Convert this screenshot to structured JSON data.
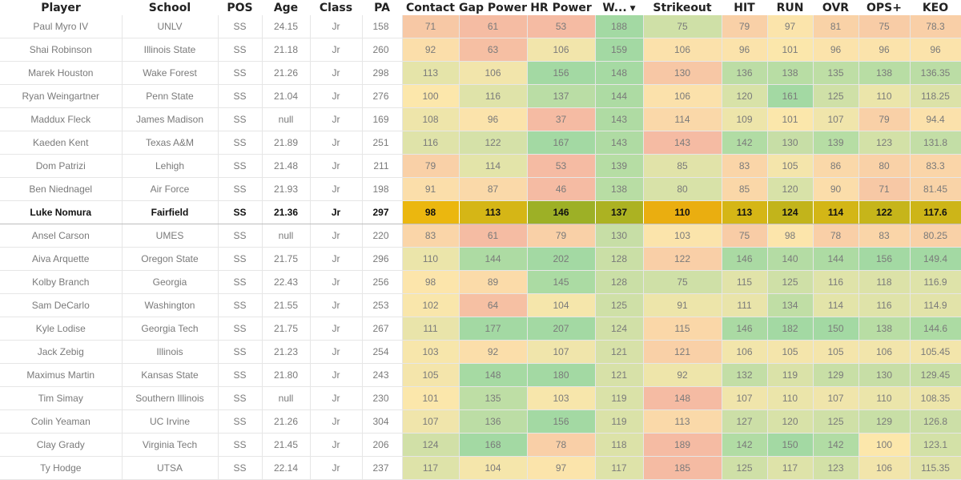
{
  "columns": [
    {
      "key": "player",
      "label": "Player"
    },
    {
      "key": "school",
      "label": "School"
    },
    {
      "key": "pos",
      "label": "POS"
    },
    {
      "key": "age",
      "label": "Age"
    },
    {
      "key": "class",
      "label": "Class"
    },
    {
      "key": "pa",
      "label": "PA"
    },
    {
      "key": "contact",
      "label": "Contact"
    },
    {
      "key": "gap",
      "label": "Gap Power"
    },
    {
      "key": "hr",
      "label": "HR Power"
    },
    {
      "key": "walk",
      "label": "W...",
      "sorted": "desc",
      "sort_icon": "sort-desc-icon"
    },
    {
      "key": "k",
      "label": "Strikeout"
    },
    {
      "key": "hit",
      "label": "HIT"
    },
    {
      "key": "run",
      "label": "RUN"
    },
    {
      "key": "ovr",
      "label": "OVR"
    },
    {
      "key": "ops",
      "label": "OPS+"
    },
    {
      "key": "keo",
      "label": "KEO"
    }
  ],
  "highlight_row": 8,
  "rows": [
    {
      "player": "Paul Myro IV",
      "school": "UNLV",
      "pos": "SS",
      "age": "24.15",
      "class": "Jr",
      "pa": "158",
      "contact": "71",
      "gap": "61",
      "hr": "53",
      "walk": "188",
      "k": "75",
      "hit": "79",
      "run": "97",
      "ovr": "81",
      "ops": "75",
      "keo": "78.3"
    },
    {
      "player": "Shai Robinson",
      "school": "Illinois State",
      "pos": "SS",
      "age": "21.18",
      "class": "Jr",
      "pa": "260",
      "contact": "92",
      "gap": "63",
      "hr": "106",
      "walk": "159",
      "k": "106",
      "hit": "96",
      "run": "101",
      "ovr": "96",
      "ops": "96",
      "keo": "96"
    },
    {
      "player": "Marek Houston",
      "school": "Wake Forest",
      "pos": "SS",
      "age": "21.26",
      "class": "Jr",
      "pa": "298",
      "contact": "113",
      "gap": "106",
      "hr": "156",
      "walk": "148",
      "k": "130",
      "hit": "136",
      "run": "138",
      "ovr": "135",
      "ops": "138",
      "keo": "136.35"
    },
    {
      "player": "Ryan Weingartner",
      "school": "Penn State",
      "pos": "SS",
      "age": "21.04",
      "class": "Jr",
      "pa": "276",
      "contact": "100",
      "gap": "116",
      "hr": "137",
      "walk": "144",
      "k": "106",
      "hit": "120",
      "run": "161",
      "ovr": "125",
      "ops": "110",
      "keo": "118.25"
    },
    {
      "player": "Maddux Fleck",
      "school": "James Madison",
      "pos": "SS",
      "age": "null",
      "class": "Jr",
      "pa": "169",
      "contact": "108",
      "gap": "96",
      "hr": "37",
      "walk": "143",
      "k": "114",
      "hit": "109",
      "run": "101",
      "ovr": "107",
      "ops": "79",
      "keo": "94.4"
    },
    {
      "player": "Kaeden Kent",
      "school": "Texas A&M",
      "pos": "SS",
      "age": "21.89",
      "class": "Jr",
      "pa": "251",
      "contact": "116",
      "gap": "122",
      "hr": "167",
      "walk": "143",
      "k": "143",
      "hit": "142",
      "run": "130",
      "ovr": "139",
      "ops": "123",
      "keo": "131.8"
    },
    {
      "player": "Dom Patrizi",
      "school": "Lehigh",
      "pos": "SS",
      "age": "21.48",
      "class": "Jr",
      "pa": "211",
      "contact": "79",
      "gap": "114",
      "hr": "53",
      "walk": "139",
      "k": "85",
      "hit": "83",
      "run": "105",
      "ovr": "86",
      "ops": "80",
      "keo": "83.3"
    },
    {
      "player": "Ben Niednagel",
      "school": "Air Force",
      "pos": "SS",
      "age": "21.93",
      "class": "Jr",
      "pa": "198",
      "contact": "91",
      "gap": "87",
      "hr": "46",
      "walk": "138",
      "k": "80",
      "hit": "85",
      "run": "120",
      "ovr": "90",
      "ops": "71",
      "keo": "81.45"
    },
    {
      "player": "Luke Nomura",
      "school": "Fairfield",
      "pos": "SS",
      "age": "21.36",
      "class": "Jr",
      "pa": "297",
      "contact": "98",
      "gap": "113",
      "hr": "146",
      "walk": "137",
      "k": "110",
      "hit": "113",
      "run": "124",
      "ovr": "114",
      "ops": "122",
      "keo": "117.6"
    },
    {
      "player": "Ansel Carson",
      "school": "UMES",
      "pos": "SS",
      "age": "null",
      "class": "Jr",
      "pa": "220",
      "contact": "83",
      "gap": "61",
      "hr": "79",
      "walk": "130",
      "k": "103",
      "hit": "75",
      "run": "98",
      "ovr": "78",
      "ops": "83",
      "keo": "80.25"
    },
    {
      "player": "Aiva Arquette",
      "school": "Oregon State",
      "pos": "SS",
      "age": "21.75",
      "class": "Jr",
      "pa": "296",
      "contact": "110",
      "gap": "144",
      "hr": "202",
      "walk": "128",
      "k": "122",
      "hit": "146",
      "run": "140",
      "ovr": "144",
      "ops": "156",
      "keo": "149.4"
    },
    {
      "player": "Kolby Branch",
      "school": "Georgia",
      "pos": "SS",
      "age": "22.43",
      "class": "Jr",
      "pa": "256",
      "contact": "98",
      "gap": "89",
      "hr": "145",
      "walk": "128",
      "k": "75",
      "hit": "115",
      "run": "125",
      "ovr": "116",
      "ops": "118",
      "keo": "116.9"
    },
    {
      "player": "Sam DeCarlo",
      "school": "Washington",
      "pos": "SS",
      "age": "21.55",
      "class": "Jr",
      "pa": "253",
      "contact": "102",
      "gap": "64",
      "hr": "104",
      "walk": "125",
      "k": "91",
      "hit": "111",
      "run": "134",
      "ovr": "114",
      "ops": "116",
      "keo": "114.9"
    },
    {
      "player": "Kyle Lodise",
      "school": "Georgia Tech",
      "pos": "SS",
      "age": "21.75",
      "class": "Jr",
      "pa": "267",
      "contact": "111",
      "gap": "177",
      "hr": "207",
      "walk": "124",
      "k": "115",
      "hit": "146",
      "run": "182",
      "ovr": "150",
      "ops": "138",
      "keo": "144.6"
    },
    {
      "player": "Jack Zebig",
      "school": "Illinois",
      "pos": "SS",
      "age": "21.23",
      "class": "Jr",
      "pa": "254",
      "contact": "103",
      "gap": "92",
      "hr": "107",
      "walk": "121",
      "k": "121",
      "hit": "106",
      "run": "105",
      "ovr": "105",
      "ops": "106",
      "keo": "105.45"
    },
    {
      "player": "Maximus Martin",
      "school": "Kansas State",
      "pos": "SS",
      "age": "21.80",
      "class": "Jr",
      "pa": "243",
      "contact": "105",
      "gap": "148",
      "hr": "180",
      "walk": "121",
      "k": "92",
      "hit": "132",
      "run": "119",
      "ovr": "129",
      "ops": "130",
      "keo": "129.45"
    },
    {
      "player": "Tim Simay",
      "school": "Southern Illinois",
      "pos": "SS",
      "age": "null",
      "class": "Jr",
      "pa": "230",
      "contact": "101",
      "gap": "135",
      "hr": "103",
      "walk": "119",
      "k": "148",
      "hit": "107",
      "run": "110",
      "ovr": "107",
      "ops": "110",
      "keo": "108.35"
    },
    {
      "player": "Colin Yeaman",
      "school": "UC Irvine",
      "pos": "SS",
      "age": "21.26",
      "class": "Jr",
      "pa": "304",
      "contact": "107",
      "gap": "136",
      "hr": "156",
      "walk": "119",
      "k": "113",
      "hit": "127",
      "run": "120",
      "ovr": "125",
      "ops": "129",
      "keo": "126.8"
    },
    {
      "player": "Clay Grady",
      "school": "Virginia Tech",
      "pos": "SS",
      "age": "21.45",
      "class": "Jr",
      "pa": "206",
      "contact": "124",
      "gap": "168",
      "hr": "78",
      "walk": "118",
      "k": "189",
      "hit": "142",
      "run": "150",
      "ovr": "142",
      "ops": "100",
      "keo": "123.1"
    },
    {
      "player": "Ty Hodge",
      "school": "UTSA",
      "pos": "SS",
      "age": "22.14",
      "class": "Jr",
      "pa": "237",
      "contact": "117",
      "gap": "104",
      "hr": "97",
      "walk": "117",
      "k": "185",
      "hit": "125",
      "run": "117",
      "ovr": "123",
      "ops": "106",
      "keo": "115.35"
    }
  ]
}
